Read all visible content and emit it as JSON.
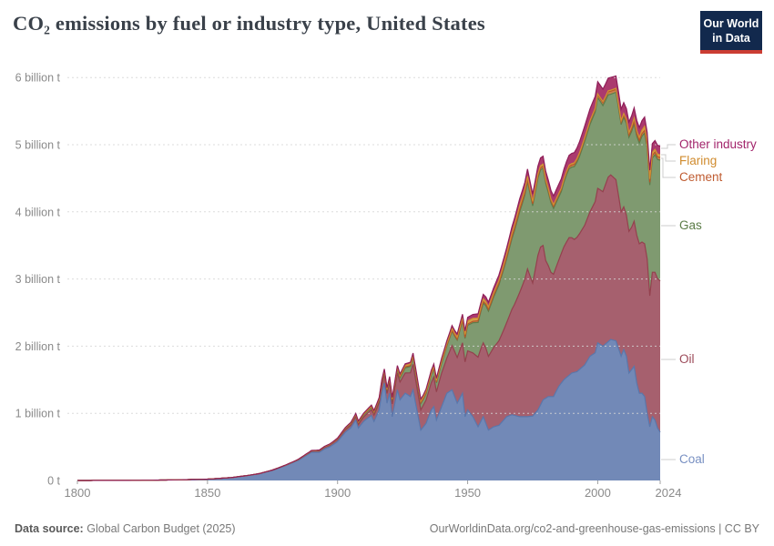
{
  "header": {
    "title": "CO₂ emissions by fuel or industry type, United States",
    "logo_line1": "Our World",
    "logo_line2": "in Data",
    "logo_bg": "#12294d",
    "logo_bar": "#cb3d33"
  },
  "footer": {
    "source_label": "Data source:",
    "source_value": "Global Carbon Budget (2025)",
    "link": "OurWorldinData.org/co2-and-greenhouse-gas-emissions | CC BY"
  },
  "chart_data": {
    "type": "area",
    "stacked": true,
    "title": "CO₂ emissions by fuel or industry type, United States",
    "unit": "billion tonnes CO₂ (billion t)",
    "x_range": [
      1800,
      2024
    ],
    "ylim": [
      0,
      6.2
    ],
    "grid": "dashed-horizontal",
    "legend_position": "right-of-plot",
    "yticks": [
      {
        "value": 0,
        "label": "0 t"
      },
      {
        "value": 1,
        "label": "1 billion t"
      },
      {
        "value": 2,
        "label": "2 billion t"
      },
      {
        "value": 3,
        "label": "3 billion t"
      },
      {
        "value": 4,
        "label": "4 billion t"
      },
      {
        "value": 5,
        "label": "5 billion t"
      },
      {
        "value": 6,
        "label": "6 billion t"
      }
    ],
    "xticks": [
      {
        "value": 1800,
        "label": "1800"
      },
      {
        "value": 1850,
        "label": "1850"
      },
      {
        "value": 1900,
        "label": "1900"
      },
      {
        "value": 1950,
        "label": "1950"
      },
      {
        "value": 2000,
        "label": "2000"
      },
      {
        "value": 2024,
        "label": "2024"
      }
    ],
    "series": [
      {
        "label": "Coal",
        "color_fill": "#7289b7",
        "color_line": "#5a77ab",
        "color_label": "#7890c2",
        "points": [
          [
            1800,
            0.0003
          ],
          [
            1810,
            0.001
          ],
          [
            1820,
            0.002
          ],
          [
            1830,
            0.005
          ],
          [
            1840,
            0.011
          ],
          [
            1850,
            0.02
          ],
          [
            1855,
            0.032
          ],
          [
            1860,
            0.047
          ],
          [
            1865,
            0.07
          ],
          [
            1870,
            0.1
          ],
          [
            1875,
            0.15
          ],
          [
            1880,
            0.22
          ],
          [
            1885,
            0.3
          ],
          [
            1890,
            0.42
          ],
          [
            1893,
            0.42
          ],
          [
            1895,
            0.47
          ],
          [
            1897,
            0.5
          ],
          [
            1900,
            0.58
          ],
          [
            1903,
            0.72
          ],
          [
            1905,
            0.78
          ],
          [
            1907,
            0.9
          ],
          [
            1908,
            0.78
          ],
          [
            1910,
            0.88
          ],
          [
            1913,
            0.97
          ],
          [
            1914,
            0.88
          ],
          [
            1916,
            1.05
          ],
          [
            1917,
            1.3
          ],
          [
            1918,
            1.45
          ],
          [
            1919,
            1.15
          ],
          [
            1920,
            1.3
          ],
          [
            1921,
            0.95
          ],
          [
            1923,
            1.35
          ],
          [
            1924,
            1.2
          ],
          [
            1926,
            1.3
          ],
          [
            1928,
            1.25
          ],
          [
            1929,
            1.35
          ],
          [
            1930,
            1.15
          ],
          [
            1932,
            0.75
          ],
          [
            1934,
            0.85
          ],
          [
            1936,
            1.05
          ],
          [
            1937,
            1.1
          ],
          [
            1938,
            0.9
          ],
          [
            1940,
            1.1
          ],
          [
            1942,
            1.3
          ],
          [
            1944,
            1.35
          ],
          [
            1945,
            1.25
          ],
          [
            1946,
            1.15
          ],
          [
            1948,
            1.3
          ],
          [
            1949,
            0.95
          ],
          [
            1950,
            1.05
          ],
          [
            1952,
            0.95
          ],
          [
            1954,
            0.8
          ],
          [
            1956,
            0.95
          ],
          [
            1958,
            0.75
          ],
          [
            1960,
            0.8
          ],
          [
            1962,
            0.82
          ],
          [
            1965,
            0.95
          ],
          [
            1967,
            0.98
          ],
          [
            1970,
            0.95
          ],
          [
            1973,
            0.95
          ],
          [
            1975,
            0.96
          ],
          [
            1977,
            1.05
          ],
          [
            1979,
            1.2
          ],
          [
            1981,
            1.25
          ],
          [
            1983,
            1.25
          ],
          [
            1985,
            1.4
          ],
          [
            1987,
            1.5
          ],
          [
            1990,
            1.6
          ],
          [
            1992,
            1.62
          ],
          [
            1995,
            1.72
          ],
          [
            1997,
            1.85
          ],
          [
            1999,
            1.9
          ],
          [
            2000,
            2.05
          ],
          [
            2002,
            2.0
          ],
          [
            2005,
            2.1
          ],
          [
            2007,
            2.08
          ],
          [
            2009,
            1.85
          ],
          [
            2010,
            1.95
          ],
          [
            2011,
            1.85
          ],
          [
            2012,
            1.6
          ],
          [
            2013,
            1.65
          ],
          [
            2014,
            1.7
          ],
          [
            2015,
            1.45
          ],
          [
            2016,
            1.3
          ],
          [
            2017,
            1.3
          ],
          [
            2018,
            1.25
          ],
          [
            2019,
            1.0
          ],
          [
            2020,
            0.8
          ],
          [
            2021,
            0.95
          ],
          [
            2022,
            0.9
          ],
          [
            2023,
            0.78
          ],
          [
            2024,
            0.72
          ]
        ]
      },
      {
        "label": "Oil",
        "color_fill": "#a6606e",
        "color_line": "#94414e",
        "color_label": "#9c4a59",
        "points": [
          [
            1860,
            0.001
          ],
          [
            1870,
            0.003
          ],
          [
            1880,
            0.008
          ],
          [
            1890,
            0.016
          ],
          [
            1900,
            0.028
          ],
          [
            1905,
            0.04
          ],
          [
            1910,
            0.065
          ],
          [
            1915,
            0.1
          ],
          [
            1918,
            0.13
          ],
          [
            1920,
            0.16
          ],
          [
            1923,
            0.25
          ],
          [
            1926,
            0.3
          ],
          [
            1929,
            0.38
          ],
          [
            1931,
            0.32
          ],
          [
            1932,
            0.3
          ],
          [
            1935,
            0.37
          ],
          [
            1937,
            0.44
          ],
          [
            1938,
            0.42
          ],
          [
            1940,
            0.5
          ],
          [
            1942,
            0.52
          ],
          [
            1944,
            0.66
          ],
          [
            1946,
            0.68
          ],
          [
            1948,
            0.75
          ],
          [
            1950,
            0.88
          ],
          [
            1952,
            0.95
          ],
          [
            1955,
            1.08
          ],
          [
            1957,
            1.12
          ],
          [
            1958,
            1.1
          ],
          [
            1960,
            1.18
          ],
          [
            1963,
            1.3
          ],
          [
            1965,
            1.4
          ],
          [
            1968,
            1.65
          ],
          [
            1970,
            1.85
          ],
          [
            1972,
            2.05
          ],
          [
            1973,
            2.2
          ],
          [
            1975,
            1.98
          ],
          [
            1977,
            2.3
          ],
          [
            1978,
            2.35
          ],
          [
            1979,
            2.3
          ],
          [
            1980,
            2.05
          ],
          [
            1982,
            1.85
          ],
          [
            1983,
            1.82
          ],
          [
            1985,
            1.88
          ],
          [
            1987,
            1.98
          ],
          [
            1989,
            2.05
          ],
          [
            1991,
            1.98
          ],
          [
            1993,
            2.02
          ],
          [
            1995,
            2.08
          ],
          [
            1997,
            2.15
          ],
          [
            2000,
            2.3
          ],
          [
            2002,
            2.3
          ],
          [
            2004,
            2.45
          ],
          [
            2005,
            2.45
          ],
          [
            2007,
            2.4
          ],
          [
            2009,
            2.15
          ],
          [
            2011,
            2.1
          ],
          [
            2013,
            2.12
          ],
          [
            2015,
            2.2
          ],
          [
            2017,
            2.25
          ],
          [
            2019,
            2.3
          ],
          [
            2020,
            1.95
          ],
          [
            2021,
            2.15
          ],
          [
            2022,
            2.2
          ],
          [
            2024,
            2.25
          ]
        ]
      },
      {
        "label": "Gas",
        "color_fill": "#7f9a70",
        "color_line": "#5d7c49",
        "color_label": "#5b7c47",
        "points": [
          [
            1885,
            0.004
          ],
          [
            1890,
            0.006
          ],
          [
            1900,
            0.013
          ],
          [
            1910,
            0.03
          ],
          [
            1920,
            0.045
          ],
          [
            1925,
            0.07
          ],
          [
            1930,
            0.11
          ],
          [
            1933,
            0.09
          ],
          [
            1935,
            0.11
          ],
          [
            1940,
            0.15
          ],
          [
            1945,
            0.23
          ],
          [
            1950,
            0.38
          ],
          [
            1955,
            0.55
          ],
          [
            1960,
            0.75
          ],
          [
            1965,
            0.95
          ],
          [
            1970,
            1.2
          ],
          [
            1972,
            1.25
          ],
          [
            1973,
            1.3
          ],
          [
            1975,
            1.15
          ],
          [
            1977,
            1.15
          ],
          [
            1980,
            1.15
          ],
          [
            1983,
            0.98
          ],
          [
            1986,
            0.92
          ],
          [
            1988,
            1.0
          ],
          [
            1990,
            1.05
          ],
          [
            1993,
            1.15
          ],
          [
            1995,
            1.25
          ],
          [
            1997,
            1.3
          ],
          [
            2000,
            1.35
          ],
          [
            2003,
            1.25
          ],
          [
            2005,
            1.2
          ],
          [
            2007,
            1.3
          ],
          [
            2009,
            1.3
          ],
          [
            2012,
            1.4
          ],
          [
            2014,
            1.45
          ],
          [
            2016,
            1.5
          ],
          [
            2018,
            1.65
          ],
          [
            2020,
            1.65
          ],
          [
            2022,
            1.75
          ],
          [
            2024,
            1.8
          ]
        ]
      },
      {
        "label": "Cement",
        "color_fill": "#c8824f",
        "color_line": "#b65628",
        "color_label": "#bf5b30",
        "points": [
          [
            1890,
            0.001
          ],
          [
            1900,
            0.003
          ],
          [
            1910,
            0.007
          ],
          [
            1920,
            0.009
          ],
          [
            1925,
            0.015
          ],
          [
            1930,
            0.014
          ],
          [
            1933,
            0.008
          ],
          [
            1940,
            0.012
          ],
          [
            1945,
            0.01
          ],
          [
            1950,
            0.02
          ],
          [
            1955,
            0.025
          ],
          [
            1960,
            0.028
          ],
          [
            1965,
            0.03
          ],
          [
            1970,
            0.033
          ],
          [
            1975,
            0.03
          ],
          [
            1980,
            0.032
          ],
          [
            1985,
            0.032
          ],
          [
            1990,
            0.033
          ],
          [
            1995,
            0.037
          ],
          [
            2000,
            0.041
          ],
          [
            2005,
            0.046
          ],
          [
            2008,
            0.04
          ],
          [
            2010,
            0.031
          ],
          [
            2015,
            0.039
          ],
          [
            2020,
            0.04
          ],
          [
            2024,
            0.04
          ]
        ]
      },
      {
        "label": "Flaring",
        "color_fill": "#d8a04a",
        "color_line": "#cf9233",
        "color_label": "#d08b2e",
        "points": [
          [
            1900,
            0.002
          ],
          [
            1910,
            0.008
          ],
          [
            1920,
            0.015
          ],
          [
            1930,
            0.025
          ],
          [
            1940,
            0.025
          ],
          [
            1945,
            0.03
          ],
          [
            1950,
            0.045
          ],
          [
            1955,
            0.04
          ],
          [
            1960,
            0.035
          ],
          [
            1965,
            0.045
          ],
          [
            1970,
            0.06
          ],
          [
            1973,
            0.05
          ],
          [
            1975,
            0.035
          ],
          [
            1980,
            0.028
          ],
          [
            1985,
            0.022
          ],
          [
            1990,
            0.022
          ],
          [
            1995,
            0.02
          ],
          [
            2000,
            0.016
          ],
          [
            2005,
            0.015
          ],
          [
            2008,
            0.02
          ],
          [
            2011,
            0.03
          ],
          [
            2014,
            0.05
          ],
          [
            2016,
            0.045
          ],
          [
            2018,
            0.06
          ],
          [
            2019,
            0.062
          ],
          [
            2020,
            0.05
          ],
          [
            2022,
            0.042
          ],
          [
            2024,
            0.04
          ]
        ]
      },
      {
        "label": "Other industry",
        "color_fill": "#ab3a6e",
        "color_line": "#8f1d58",
        "color_label": "#a2246b",
        "points": [
          [
            1880,
            0.002
          ],
          [
            1890,
            0.004
          ],
          [
            1900,
            0.006
          ],
          [
            1910,
            0.012
          ],
          [
            1920,
            0.018
          ],
          [
            1930,
            0.028
          ],
          [
            1940,
            0.035
          ],
          [
            1950,
            0.055
          ],
          [
            1960,
            0.075
          ],
          [
            1970,
            0.1
          ],
          [
            1980,
            0.12
          ],
          [
            1990,
            0.15
          ],
          [
            1995,
            0.17
          ],
          [
            2000,
            0.18
          ],
          [
            2005,
            0.19
          ],
          [
            2008,
            0.18
          ],
          [
            2010,
            0.16
          ],
          [
            2015,
            0.15
          ],
          [
            2020,
            0.13
          ],
          [
            2024,
            0.13
          ]
        ]
      }
    ]
  }
}
